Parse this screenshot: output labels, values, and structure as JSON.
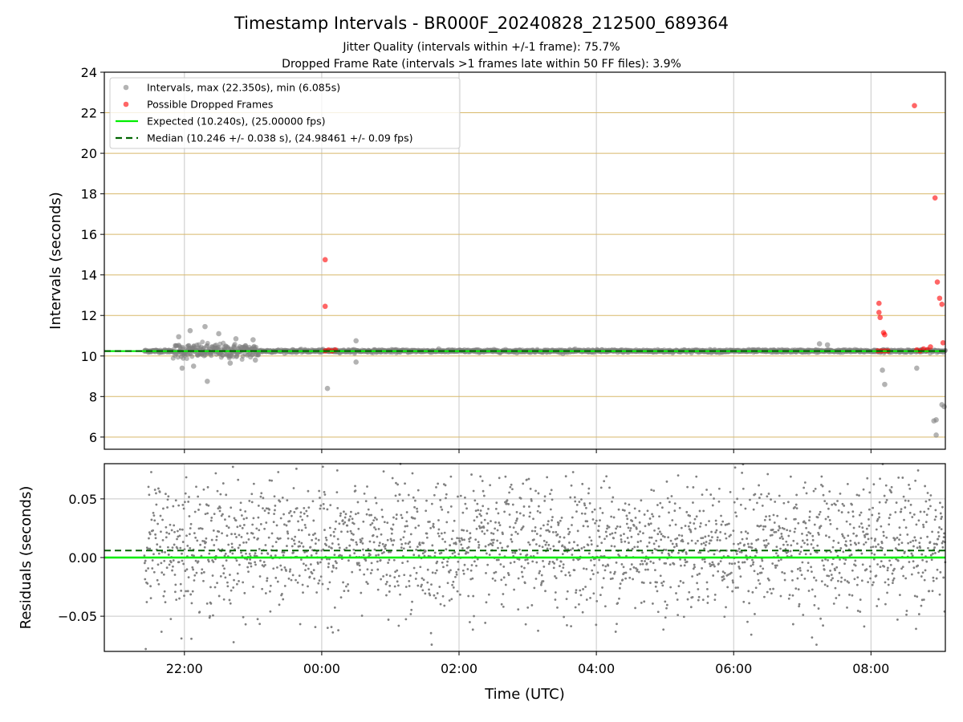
{
  "figure": {
    "title": "Timestamp Intervals - BR000F_20240828_212500_689364",
    "subtitle1": "Jitter Quality (intervals within +/-1 frame): 75.7%",
    "subtitle2": "Dropped Frame Rate (intervals >1 frames late within 50 FF files): 3.9%"
  },
  "colors": {
    "intervals": "#808080",
    "dropped": "#ff0000",
    "expected": "#00ee00",
    "median": "#006400",
    "hgrid_top": "#d8b86a",
    "grid": "#c8c8c8"
  },
  "chart_data": [
    {
      "type": "scatter",
      "ylabel": "Intervals (seconds)",
      "xlim": [
        "2024-08-28 20:50",
        "2024-08-29 09:05"
      ],
      "ylim": [
        5.4,
        24
      ],
      "yticks": [
        6,
        8,
        10,
        12,
        14,
        16,
        18,
        20,
        22,
        24
      ],
      "ytick_labels": [
        "6",
        "8",
        "10",
        "12",
        "14",
        "16",
        "18",
        "20",
        "22",
        "24"
      ],
      "xticks": [
        "2024-08-28 22:00",
        "2024-08-29 00:00",
        "2024-08-29 02:00",
        "2024-08-29 04:00",
        "2024-08-29 06:00",
        "2024-08-29 08:00"
      ],
      "grid": "on",
      "legend_position": "top-left",
      "legend": [
        "Intervals, max (22.350s), min (6.085s)",
        "Possible Dropped Frames",
        "Expected (10.240s), (25.00000 fps)",
        "Median (10.246 +/- 0.038 s), (24.98461 +/- 0.09 fps)"
      ],
      "reference_lines": {
        "expected": 10.24,
        "median": 10.246
      },
      "series": [
        {
          "name": "Intervals, max (22.350s), min (6.085s)",
          "note_time_range": [
            "2024-08-28 21:25",
            "2024-08-29 09:05"
          ],
          "points": [
            {
              "x": "2024-08-28 21:55",
              "y": 10.95
            },
            {
              "x": "2024-08-28 22:05",
              "y": 11.25
            },
            {
              "x": "2024-08-28 22:18",
              "y": 11.45
            },
            {
              "x": "2024-08-28 22:30",
              "y": 11.1
            },
            {
              "x": "2024-08-28 22:45",
              "y": 10.85
            },
            {
              "x": "2024-08-28 23:00",
              "y": 10.8
            },
            {
              "x": "2024-08-28 21:58",
              "y": 9.4
            },
            {
              "x": "2024-08-28 22:08",
              "y": 9.5
            },
            {
              "x": "2024-08-28 22:20",
              "y": 8.75
            },
            {
              "x": "2024-08-28 22:40",
              "y": 9.65
            },
            {
              "x": "2024-08-28 23:02",
              "y": 9.8
            },
            {
              "x": "2024-08-29 00:05",
              "y": 8.4
            },
            {
              "x": "2024-08-29 00:30",
              "y": 10.75
            },
            {
              "x": "2024-08-29 00:30",
              "y": 9.7
            },
            {
              "x": "2024-08-29 07:15",
              "y": 10.6
            },
            {
              "x": "2024-08-29 07:22",
              "y": 10.55
            },
            {
              "x": "2024-08-29 08:10",
              "y": 9.3
            },
            {
              "x": "2024-08-29 08:12",
              "y": 8.6
            },
            {
              "x": "2024-08-29 08:40",
              "y": 9.4
            },
            {
              "x": "2024-08-29 08:55",
              "y": 6.8
            },
            {
              "x": "2024-08-29 08:57",
              "y": 6.1
            },
            {
              "x": "2024-08-29 08:57",
              "y": 6.85
            },
            {
              "x": "2024-08-29 09:02",
              "y": 7.6
            },
            {
              "x": "2024-08-29 09:04",
              "y": 7.5
            }
          ]
        },
        {
          "name": "Possible Dropped Frames",
          "points": [
            {
              "x": "2024-08-29 00:03",
              "y": 14.75
            },
            {
              "x": "2024-08-29 00:03",
              "y": 12.45
            },
            {
              "x": "2024-08-29 00:03",
              "y": 10.25
            },
            {
              "x": "2024-08-29 00:06",
              "y": 10.3
            },
            {
              "x": "2024-08-29 00:09",
              "y": 10.25
            },
            {
              "x": "2024-08-29 00:12",
              "y": 10.3
            },
            {
              "x": "2024-08-29 08:07",
              "y": 12.6
            },
            {
              "x": "2024-08-29 08:07",
              "y": 12.15
            },
            {
              "x": "2024-08-29 08:08",
              "y": 11.9
            },
            {
              "x": "2024-08-29 08:11",
              "y": 11.15
            },
            {
              "x": "2024-08-29 08:12",
              "y": 11.05
            },
            {
              "x": "2024-08-29 08:06",
              "y": 10.25
            },
            {
              "x": "2024-08-29 08:09",
              "y": 10.25
            },
            {
              "x": "2024-08-29 08:12",
              "y": 10.25
            },
            {
              "x": "2024-08-29 08:15",
              "y": 10.25
            },
            {
              "x": "2024-08-29 08:38",
              "y": 22.35
            },
            {
              "x": "2024-08-29 08:40",
              "y": 10.3
            },
            {
              "x": "2024-08-29 08:43",
              "y": 10.25
            },
            {
              "x": "2024-08-29 08:46",
              "y": 10.35
            },
            {
              "x": "2024-08-29 08:49",
              "y": 10.3
            },
            {
              "x": "2024-08-29 08:52",
              "y": 10.45
            },
            {
              "x": "2024-08-29 08:56",
              "y": 17.8
            },
            {
              "x": "2024-08-29 08:58",
              "y": 13.65
            },
            {
              "x": "2024-08-29 09:00",
              "y": 12.85
            },
            {
              "x": "2024-08-29 09:02",
              "y": 12.55
            },
            {
              "x": "2024-08-29 09:03",
              "y": 10.65
            }
          ]
        }
      ]
    },
    {
      "type": "scatter",
      "xlabel": "Time (UTC)",
      "ylabel": "Residuals (seconds)",
      "xlim": [
        "2024-08-28 20:50",
        "2024-08-29 09:05"
      ],
      "ylim": [
        -0.08,
        0.08
      ],
      "yticks": [
        -0.05,
        0.0,
        0.05
      ],
      "ytick_labels": [
        "−0.05",
        "0.00",
        "0.05"
      ],
      "xticks": [
        "2024-08-28 22:00",
        "2024-08-29 00:00",
        "2024-08-29 02:00",
        "2024-08-29 04:00",
        "2024-08-29 06:00",
        "2024-08-29 08:00"
      ],
      "xtick_labels": [
        "22:00",
        "00:00",
        "02:00",
        "04:00",
        "06:00",
        "08:00"
      ],
      "grid": "on",
      "reference_lines": {
        "expected": 0.0,
        "median": 0.006
      },
      "residual_spread": {
        "time_range": [
          "2024-08-28 21:25",
          "2024-08-29 09:05"
        ],
        "center": 0.01,
        "typical_sd": 0.028
      }
    }
  ]
}
